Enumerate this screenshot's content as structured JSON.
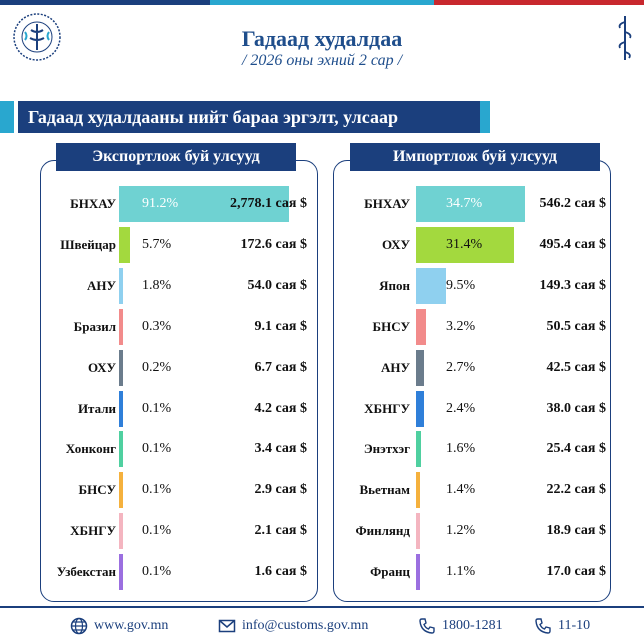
{
  "header": {
    "title": "Гадаад худалдаа",
    "subtitle": "/ 2026 оны эхний 2 сар /"
  },
  "banner": {
    "label": "Гадаад худалдааны нийт бараа эргэлт, улсаар"
  },
  "colors": {
    "navy": "#1b3f7d",
    "accent_blue": "#29a7cf",
    "title_blue": "#1f4e8c"
  },
  "footer": {
    "website": "www.gov.mn",
    "email": "info@customs.gov.mn",
    "phone": "1800-1281",
    "short_number": "11-10",
    "icons": [
      "globe-icon",
      "mail-icon",
      "phone-icon",
      "phone-icon"
    ]
  },
  "chart_data": [
    {
      "type": "bar",
      "orientation": "horizontal",
      "title": "Экспортлож буй улсууд",
      "categories": [
        "БНХАУ",
        "Швейцар",
        "АНУ",
        "Бразил",
        "ОХУ",
        "Итали",
        "Хонконг",
        "БНСУ",
        "ХБНГУ",
        "Узбекстан"
      ],
      "percent_labels": [
        "91.2%",
        "5.7%",
        "1.8%",
        "0.3%",
        "0.2%",
        "0.1%",
        "0.1%",
        "0.1%",
        "0.1%",
        "0.1%"
      ],
      "percent_values": [
        91.2,
        5.7,
        1.8,
        0.3,
        0.2,
        0.1,
        0.1,
        0.1,
        0.1,
        0.1
      ],
      "value_labels": [
        "2,778.1 сая $",
        "172.6 сая $",
        "54.0 сая $",
        "9.1 сая $",
        "6.7 сая $",
        "4.2 сая $",
        "3.4 сая $",
        "2.9 сая $",
        "2.1 сая $",
        "1.6 сая $"
      ],
      "values": [
        2778.1,
        172.6,
        54.0,
        9.1,
        6.7,
        4.2,
        3.4,
        2.9,
        2.1,
        1.6
      ],
      "unit": "сая $",
      "bar_colors": [
        "#6fd2d2",
        "#a3d93e",
        "#8fd0ef",
        "#f28b8b",
        "#6b7c8c",
        "#2f7fd9",
        "#4fd0a0",
        "#f5b13d",
        "#f4b5c0",
        "#9b6fe0"
      ]
    },
    {
      "type": "bar",
      "orientation": "horizontal",
      "title": "Импортлож буй улсууд",
      "categories": [
        "БНХАУ",
        "ОХУ",
        "Япон",
        "БНСУ",
        "АНУ",
        "ХБНГУ",
        "Энэтхэг",
        "Вьетнам",
        "Финлянд",
        "Франц"
      ],
      "percent_labels": [
        "34.7%",
        "31.4%",
        "9.5%",
        "3.2%",
        "2.7%",
        "2.4%",
        "1.6%",
        "1.4%",
        "1.2%",
        "1.1%"
      ],
      "percent_values": [
        34.7,
        31.4,
        9.5,
        3.2,
        2.7,
        2.4,
        1.6,
        1.4,
        1.2,
        1.1
      ],
      "value_labels": [
        "546.2 сая $",
        "495.4 сая $",
        "149.3 сая $",
        "50.5 сая $",
        "42.5 сая $",
        "38.0 сая $",
        "25.4 сая $",
        "22.2 сая $",
        "18.9 сая $",
        "17.0 сая $"
      ],
      "values": [
        546.2,
        495.4,
        149.3,
        50.5,
        42.5,
        38.0,
        25.4,
        22.2,
        18.9,
        17.0
      ],
      "unit": "сая $",
      "bar_colors": [
        "#6fd2d2",
        "#a3d93e",
        "#8fd0ef",
        "#f28b8b",
        "#6b7c8c",
        "#2f7fd9",
        "#4fd0a0",
        "#f5b13d",
        "#f4b5c0",
        "#9b6fe0"
      ]
    }
  ]
}
